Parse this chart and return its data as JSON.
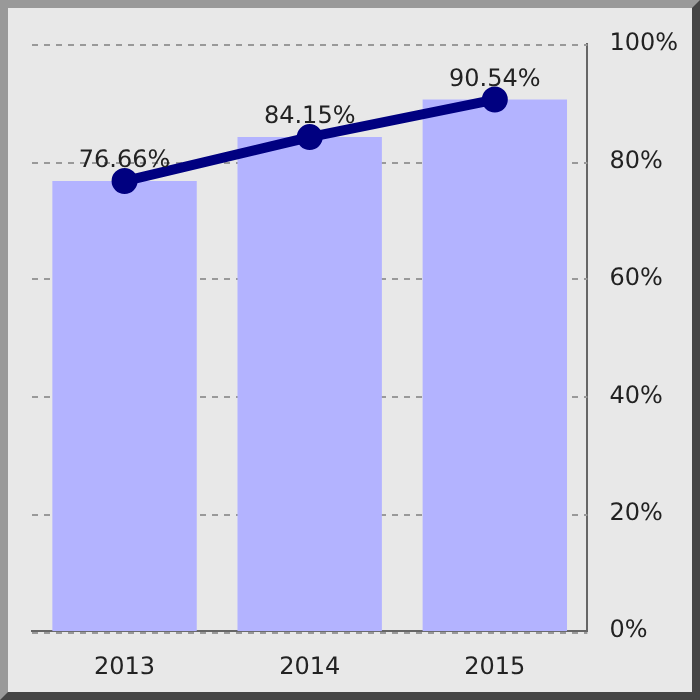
{
  "chart_data": {
    "type": "bar",
    "categories": [
      "2013",
      "2014",
      "2015"
    ],
    "series": [
      {
        "color": "#b3b3ff",
        "values": [
          76.66,
          84.15,
          90.54
        ]
      },
      {
        "type": "line",
        "color": "#000080",
        "values": [
          76.66,
          84.15,
          90.54
        ],
        "value_labels": [
          "76.66%",
          "84.15%",
          "90.54%"
        ]
      }
    ],
    "ylim": [
      0,
      100
    ],
    "yticks": [
      {
        "value": 0,
        "label": "0%"
      },
      {
        "value": 20,
        "label": "20%"
      },
      {
        "value": 40,
        "label": "40%"
      },
      {
        "value": 60,
        "label": "60%"
      },
      {
        "value": 80,
        "label": "80%"
      },
      {
        "value": 100,
        "label": "100%"
      }
    ],
    "grid": "y",
    "legend": false,
    "marker": "circle",
    "line_style": "solid"
  }
}
